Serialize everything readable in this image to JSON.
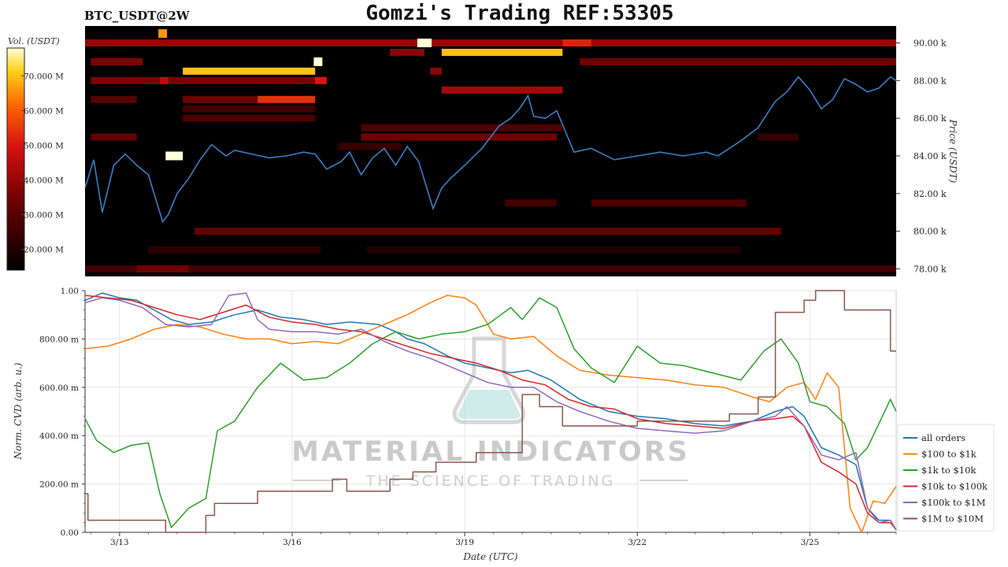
{
  "header": {
    "symbol": "BTC_USDT@2W",
    "title": "Gomzi's Trading REF:53305"
  },
  "watermark": {
    "main": "MATERIAL INDICATORS",
    "sub": "THE SCIENCE OF TRADING"
  },
  "colors": {
    "price_line": "#3a7fc4",
    "heat_bg": "#000000"
  },
  "chart_data": [
    {
      "type": "heatmap",
      "name": "order-book-heatmap",
      "colorbar": {
        "label": "Vol. (USDT)",
        "ticks": [
          "20.000 M",
          "30.000 M",
          "40.000 M",
          "50.000 M",
          "60.000 M",
          "70.000 M"
        ],
        "tick_values": [
          20,
          30,
          40,
          50,
          60,
          70
        ],
        "range": [
          14,
          78
        ]
      },
      "y_axis": {
        "label": "Price (USDT)",
        "ticks": [
          "78.00 k",
          "80.00 k",
          "82.00 k",
          "84.00 k",
          "86.00 k",
          "88.00 k",
          "90.00 k"
        ],
        "tick_values": [
          78,
          80,
          82,
          84,
          86,
          88,
          90
        ],
        "range": [
          77.6,
          90.9
        ]
      },
      "x_range": [
        12.4,
        26.5
      ],
      "price_series": {
        "name": "price",
        "x": [
          12.4,
          12.55,
          12.7,
          12.9,
          13.1,
          13.3,
          13.5,
          13.75,
          13.85,
          14.0,
          14.2,
          14.4,
          14.6,
          14.85,
          15.0,
          15.3,
          15.6,
          15.9,
          16.2,
          16.4,
          16.6,
          16.85,
          17.0,
          17.2,
          17.4,
          17.6,
          17.8,
          18.0,
          18.2,
          18.45,
          18.6,
          18.75,
          19.0,
          19.3,
          19.6,
          19.8,
          19.95,
          20.1,
          20.2,
          20.4,
          20.6,
          20.9,
          21.2,
          21.6,
          22.0,
          22.4,
          22.8,
          23.2,
          23.4,
          23.8,
          24.1,
          24.4,
          24.6,
          24.8,
          25.0,
          25.2,
          25.4,
          25.6,
          25.8,
          26.0,
          26.2,
          26.4,
          26.5
        ],
        "y": [
          82.3,
          83.8,
          81.0,
          83.5,
          84.1,
          83.5,
          83.0,
          80.5,
          80.9,
          82.0,
          82.8,
          83.8,
          84.6,
          84.0,
          84.3,
          84.1,
          83.9,
          84.0,
          84.2,
          84.1,
          83.3,
          83.7,
          84.2,
          83.0,
          83.9,
          84.4,
          83.5,
          84.5,
          83.7,
          81.2,
          82.3,
          82.8,
          83.5,
          84.4,
          85.6,
          86.0,
          86.5,
          87.2,
          86.1,
          86.0,
          86.4,
          84.2,
          84.4,
          83.8,
          84.0,
          84.2,
          84.0,
          84.2,
          84.0,
          84.8,
          85.5,
          86.9,
          87.4,
          88.2,
          87.5,
          86.5,
          87.0,
          88.1,
          87.8,
          87.4,
          87.6,
          88.2,
          88.0
        ]
      },
      "bands": [
        {
          "y": 90.0,
          "x0": 12.4,
          "x1": 26.5,
          "v": 40
        },
        {
          "y": 90.0,
          "x0": 20.7,
          "x1": 21.2,
          "v": 52
        },
        {
          "y": 89.5,
          "x0": 17.7,
          "x1": 18.3,
          "v": 38
        },
        {
          "y": 89.5,
          "x0": 18.6,
          "x1": 20.7,
          "v": 70
        },
        {
          "y": 89.0,
          "x0": 12.5,
          "x1": 13.4,
          "v": 36
        },
        {
          "y": 89.0,
          "x0": 21.0,
          "x1": 26.5,
          "v": 34
        },
        {
          "y": 88.5,
          "x0": 14.1,
          "x1": 16.4,
          "v": 70
        },
        {
          "y": 88.5,
          "x0": 18.4,
          "x1": 18.6,
          "v": 38
        },
        {
          "y": 88.0,
          "x0": 12.5,
          "x1": 16.6,
          "v": 36
        },
        {
          "y": 88.0,
          "x0": 13.7,
          "x1": 13.85,
          "v": 46
        },
        {
          "y": 88.0,
          "x0": 16.4,
          "x1": 16.6,
          "v": 50
        },
        {
          "y": 87.5,
          "x0": 18.6,
          "x1": 20.7,
          "v": 42
        },
        {
          "y": 87.0,
          "x0": 12.5,
          "x1": 13.3,
          "v": 30
        },
        {
          "y": 87.0,
          "x0": 14.1,
          "x1": 15.4,
          "v": 34
        },
        {
          "y": 87.0,
          "x0": 15.4,
          "x1": 16.4,
          "v": 54
        },
        {
          "y": 86.5,
          "x0": 14.1,
          "x1": 16.4,
          "v": 26
        },
        {
          "y": 86.0,
          "x0": 14.1,
          "x1": 16.4,
          "v": 28
        },
        {
          "y": 85.5,
          "x0": 17.2,
          "x1": 20.7,
          "v": 28
        },
        {
          "y": 85.0,
          "x0": 12.5,
          "x1": 13.3,
          "v": 32
        },
        {
          "y": 85.0,
          "x0": 17.2,
          "x1": 20.6,
          "v": 34
        },
        {
          "y": 85.0,
          "x0": 24.1,
          "x1": 24.8,
          "v": 24
        },
        {
          "y": 84.5,
          "x0": 16.8,
          "x1": 17.9,
          "v": 24
        },
        {
          "y": 81.5,
          "x0": 19.7,
          "x1": 20.6,
          "v": 26
        },
        {
          "y": 81.5,
          "x0": 21.2,
          "x1": 23.9,
          "v": 28
        },
        {
          "y": 80.0,
          "x0": 14.3,
          "x1": 24.5,
          "v": 32
        },
        {
          "y": 79.0,
          "x0": 13.5,
          "x1": 16.5,
          "v": 22
        },
        {
          "y": 79.0,
          "x0": 17.3,
          "x1": 23.8,
          "v": 20
        },
        {
          "y": 78.0,
          "x0": 12.4,
          "x1": 26.5,
          "v": 26
        },
        {
          "y": 78.0,
          "x0": 13.3,
          "x1": 14.2,
          "v": 34
        }
      ],
      "spots": [
        {
          "x": 13.75,
          "y": 90.5,
          "w": 0.15,
          "v": 66
        },
        {
          "x": 18.3,
          "y": 90.0,
          "w": 0.25,
          "v": 78
        },
        {
          "x": 16.45,
          "y": 89.0,
          "w": 0.15,
          "v": 78
        },
        {
          "x": 13.95,
          "y": 84.0,
          "w": 0.3,
          "v": 78
        }
      ]
    },
    {
      "type": "line",
      "name": "normalized-cvd",
      "xlabel": "Date (UTC)",
      "ylabel": "Norm. CVD (arb. u.)",
      "x_ticks": [
        "3/13",
        "3/16",
        "3/19",
        "3/22",
        "3/25"
      ],
      "x_tick_values": [
        13,
        16,
        19,
        22,
        25
      ],
      "x_range": [
        12.4,
        26.5
      ],
      "y_ticks": [
        "0.00",
        "200.00 m",
        "400.00 m",
        "600.00 m",
        "800.00 m",
        "1.00"
      ],
      "y_tick_values": [
        0,
        0.2,
        0.4,
        0.6,
        0.8,
        1.0
      ],
      "ylim": [
        0,
        1
      ],
      "legend": "right",
      "series": [
        {
          "name": "all orders",
          "color": "#1f77b4",
          "x": [
            12.4,
            12.7,
            13.0,
            13.3,
            13.6,
            13.9,
            14.2,
            14.6,
            15.0,
            15.4,
            15.8,
            16.2,
            16.6,
            17.0,
            17.5,
            17.8,
            18.0,
            18.3,
            18.7,
            19.0,
            19.4,
            19.8,
            20.1,
            20.5,
            21.0,
            21.5,
            22.0,
            22.5,
            23.0,
            23.5,
            24.0,
            24.4,
            24.7,
            24.9,
            25.2,
            25.5,
            25.8,
            26.0,
            26.2,
            26.4,
            26.5
          ],
          "y": [
            0.96,
            0.99,
            0.97,
            0.96,
            0.92,
            0.88,
            0.86,
            0.87,
            0.9,
            0.92,
            0.89,
            0.88,
            0.86,
            0.87,
            0.86,
            0.83,
            0.8,
            0.78,
            0.73,
            0.7,
            0.68,
            0.66,
            0.67,
            0.63,
            0.55,
            0.5,
            0.48,
            0.47,
            0.45,
            0.44,
            0.46,
            0.5,
            0.52,
            0.48,
            0.35,
            0.32,
            0.28,
            0.1,
            0.05,
            0.05,
            0.01
          ]
        },
        {
          "name": "$100 to $1k",
          "color": "#ff7f0e",
          "x": [
            12.4,
            12.8,
            13.2,
            13.6,
            14.0,
            14.4,
            14.8,
            15.2,
            15.6,
            16.0,
            16.4,
            16.8,
            17.2,
            17.6,
            18.0,
            18.4,
            18.7,
            19.0,
            19.2,
            19.5,
            19.8,
            20.2,
            20.6,
            21.0,
            21.5,
            22.0,
            22.5,
            23.0,
            23.5,
            24.0,
            24.3,
            24.6,
            24.9,
            25.1,
            25.3,
            25.5,
            25.7,
            25.9,
            26.1,
            26.3,
            26.5
          ],
          "y": [
            0.76,
            0.77,
            0.8,
            0.84,
            0.86,
            0.85,
            0.82,
            0.8,
            0.8,
            0.78,
            0.79,
            0.78,
            0.82,
            0.86,
            0.9,
            0.95,
            0.98,
            0.97,
            0.94,
            0.82,
            0.8,
            0.81,
            0.73,
            0.67,
            0.65,
            0.64,
            0.63,
            0.61,
            0.6,
            0.56,
            0.54,
            0.6,
            0.62,
            0.55,
            0.66,
            0.6,
            0.1,
            0.0,
            0.13,
            0.12,
            0.19
          ]
        },
        {
          "name": "$1k to $10k",
          "color": "#2ca02c",
          "x": [
            12.4,
            12.6,
            12.9,
            13.2,
            13.5,
            13.7,
            13.9,
            14.2,
            14.5,
            14.7,
            15.0,
            15.4,
            15.8,
            16.2,
            16.6,
            17.0,
            17.4,
            17.8,
            18.2,
            18.6,
            19.0,
            19.4,
            19.8,
            20.0,
            20.3,
            20.6,
            20.9,
            21.2,
            21.6,
            22.0,
            22.4,
            22.8,
            23.3,
            23.8,
            24.2,
            24.5,
            24.8,
            25.0,
            25.3,
            25.6,
            25.8,
            26.0,
            26.2,
            26.4,
            26.5
          ],
          "y": [
            0.47,
            0.38,
            0.33,
            0.36,
            0.37,
            0.16,
            0.02,
            0.1,
            0.14,
            0.42,
            0.46,
            0.6,
            0.7,
            0.63,
            0.64,
            0.7,
            0.78,
            0.83,
            0.8,
            0.82,
            0.83,
            0.86,
            0.93,
            0.88,
            0.97,
            0.93,
            0.76,
            0.68,
            0.62,
            0.77,
            0.7,
            0.69,
            0.66,
            0.63,
            0.75,
            0.8,
            0.7,
            0.54,
            0.52,
            0.45,
            0.3,
            0.35,
            0.45,
            0.55,
            0.5
          ]
        },
        {
          "name": "$10k to $100k",
          "color": "#d62728",
          "x": [
            12.4,
            12.8,
            13.2,
            13.6,
            14.0,
            14.4,
            14.8,
            15.2,
            15.6,
            16.0,
            16.4,
            16.8,
            17.2,
            17.6,
            18.0,
            18.4,
            18.8,
            19.2,
            19.6,
            20.0,
            20.4,
            20.8,
            21.2,
            21.6,
            22.0,
            22.5,
            23.0,
            23.5,
            24.0,
            24.4,
            24.7,
            24.9,
            25.2,
            25.5,
            25.8,
            26.0,
            26.2,
            26.4,
            26.5
          ],
          "y": [
            0.98,
            0.97,
            0.96,
            0.93,
            0.9,
            0.88,
            0.91,
            0.94,
            0.89,
            0.87,
            0.86,
            0.84,
            0.83,
            0.8,
            0.77,
            0.74,
            0.72,
            0.7,
            0.67,
            0.63,
            0.61,
            0.55,
            0.52,
            0.51,
            0.47,
            0.45,
            0.44,
            0.43,
            0.46,
            0.47,
            0.48,
            0.44,
            0.29,
            0.25,
            0.2,
            0.08,
            0.04,
            0.04,
            0.01
          ]
        },
        {
          "name": "$100k to $1M",
          "color": "#9467bd",
          "x": [
            12.4,
            12.7,
            13.0,
            13.4,
            13.8,
            14.2,
            14.6,
            14.9,
            15.2,
            15.4,
            15.6,
            16.0,
            16.4,
            16.8,
            17.2,
            17.6,
            18.0,
            18.4,
            18.8,
            19.1,
            19.4,
            19.8,
            20.2,
            20.6,
            21.0,
            21.5,
            22.0,
            22.5,
            23.0,
            23.5,
            24.0,
            24.4,
            24.6,
            24.9,
            25.2,
            25.5,
            25.8,
            26.0,
            26.2,
            26.4,
            26.5
          ],
          "y": [
            0.95,
            0.97,
            0.96,
            0.93,
            0.86,
            0.85,
            0.86,
            0.98,
            0.99,
            0.88,
            0.84,
            0.83,
            0.83,
            0.82,
            0.84,
            0.79,
            0.75,
            0.72,
            0.68,
            0.65,
            0.62,
            0.6,
            0.6,
            0.54,
            0.5,
            0.46,
            0.43,
            0.42,
            0.41,
            0.42,
            0.46,
            0.48,
            0.52,
            0.44,
            0.32,
            0.3,
            0.33,
            0.1,
            0.04,
            0.05,
            0.01
          ]
        },
        {
          "name": "$1M to $10M",
          "color": "#8c564b",
          "x": [
            12.4,
            12.45,
            12.45,
            13.8,
            13.8,
            14.5,
            14.5,
            14.65,
            14.65,
            15.4,
            15.4,
            16.7,
            16.7,
            16.95,
            16.95,
            17.7,
            17.7,
            18.1,
            18.1,
            18.5,
            18.5,
            19.2,
            19.2,
            20.0,
            20.0,
            20.3,
            20.3,
            20.7,
            20.7,
            22.0,
            22.0,
            23.6,
            23.6,
            24.1,
            24.1,
            24.4,
            24.4,
            24.9,
            24.9,
            25.1,
            25.1,
            25.6,
            25.6,
            26.4,
            26.4,
            26.5
          ],
          "y": [
            0.16,
            0.16,
            0.05,
            0.05,
            0.0,
            0.0,
            0.07,
            0.07,
            0.12,
            0.12,
            0.17,
            0.17,
            0.22,
            0.22,
            0.17,
            0.17,
            0.22,
            0.22,
            0.25,
            0.25,
            0.29,
            0.29,
            0.33,
            0.33,
            0.57,
            0.57,
            0.52,
            0.52,
            0.44,
            0.44,
            0.46,
            0.46,
            0.49,
            0.49,
            0.56,
            0.56,
            0.91,
            0.91,
            0.96,
            0.96,
            1.0,
            1.0,
            0.92,
            0.92,
            0.75,
            0.75
          ]
        }
      ]
    }
  ]
}
